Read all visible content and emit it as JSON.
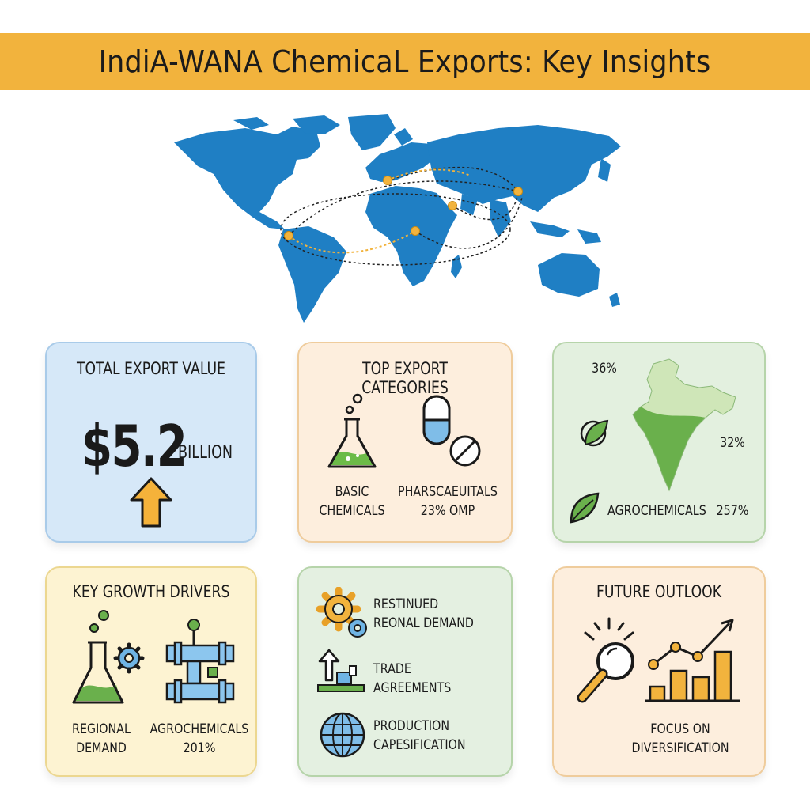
{
  "header": {
    "title": "IndiA-WANA ChemicaL Exports: Key Insights"
  },
  "colors": {
    "banner": "#f2b33d",
    "map_blue": "#1f7fc4",
    "route_dot": "#f2b33d"
  },
  "map": {
    "icon": "world-map-icon"
  },
  "cards": {
    "total_export": {
      "title": "TOTAL EXPORT VALUE",
      "value": "$5.2",
      "unit": "BILLION",
      "icon": "arrow-up-icon"
    },
    "top_categories": {
      "title": "TOP EXPORT CATEGORIES",
      "item1": {
        "line1": "BASIC",
        "line2": "CHEMICALS",
        "icon": "flask-icon"
      },
      "item2": {
        "line1": "PHARSCAEUITALS",
        "line2": "23% OMP",
        "icon": "pill-icon"
      }
    },
    "share": {
      "pct_top": "36%",
      "pct_mid": "32%",
      "label": "AGROCHEMICALS",
      "pct_bottom": "257%",
      "icon": "india-map-icon"
    },
    "growth_drivers": {
      "title": "KEY GROWTH DRIVERS",
      "item1": {
        "line1": "REGIONAL",
        "line2": "DEMAND",
        "icon": "flask-gear-icon"
      },
      "item2": {
        "line1": "AGROCHEMICALS",
        "line2": "201%",
        "icon": "pipeline-icon"
      }
    },
    "factors": {
      "item1": {
        "line1": "RESTINUED",
        "line2": "REONAL DEMAND",
        "icon": "gears-icon"
      },
      "item2": {
        "line1": "TRADE",
        "line2": "AGREEMENTS",
        "icon": "trade-arrow-icon"
      },
      "item3": {
        "line1": "PRODUCTION",
        "line2": "CAPESIFICATION",
        "icon": "globe-icon"
      }
    },
    "outlook": {
      "title": "FUTURE OUTLOOK",
      "line1": "FOCUS ON",
      "line2": "DIVERSIFICATION",
      "icons": [
        "magnifier-icon",
        "growth-chart-icon"
      ]
    }
  }
}
